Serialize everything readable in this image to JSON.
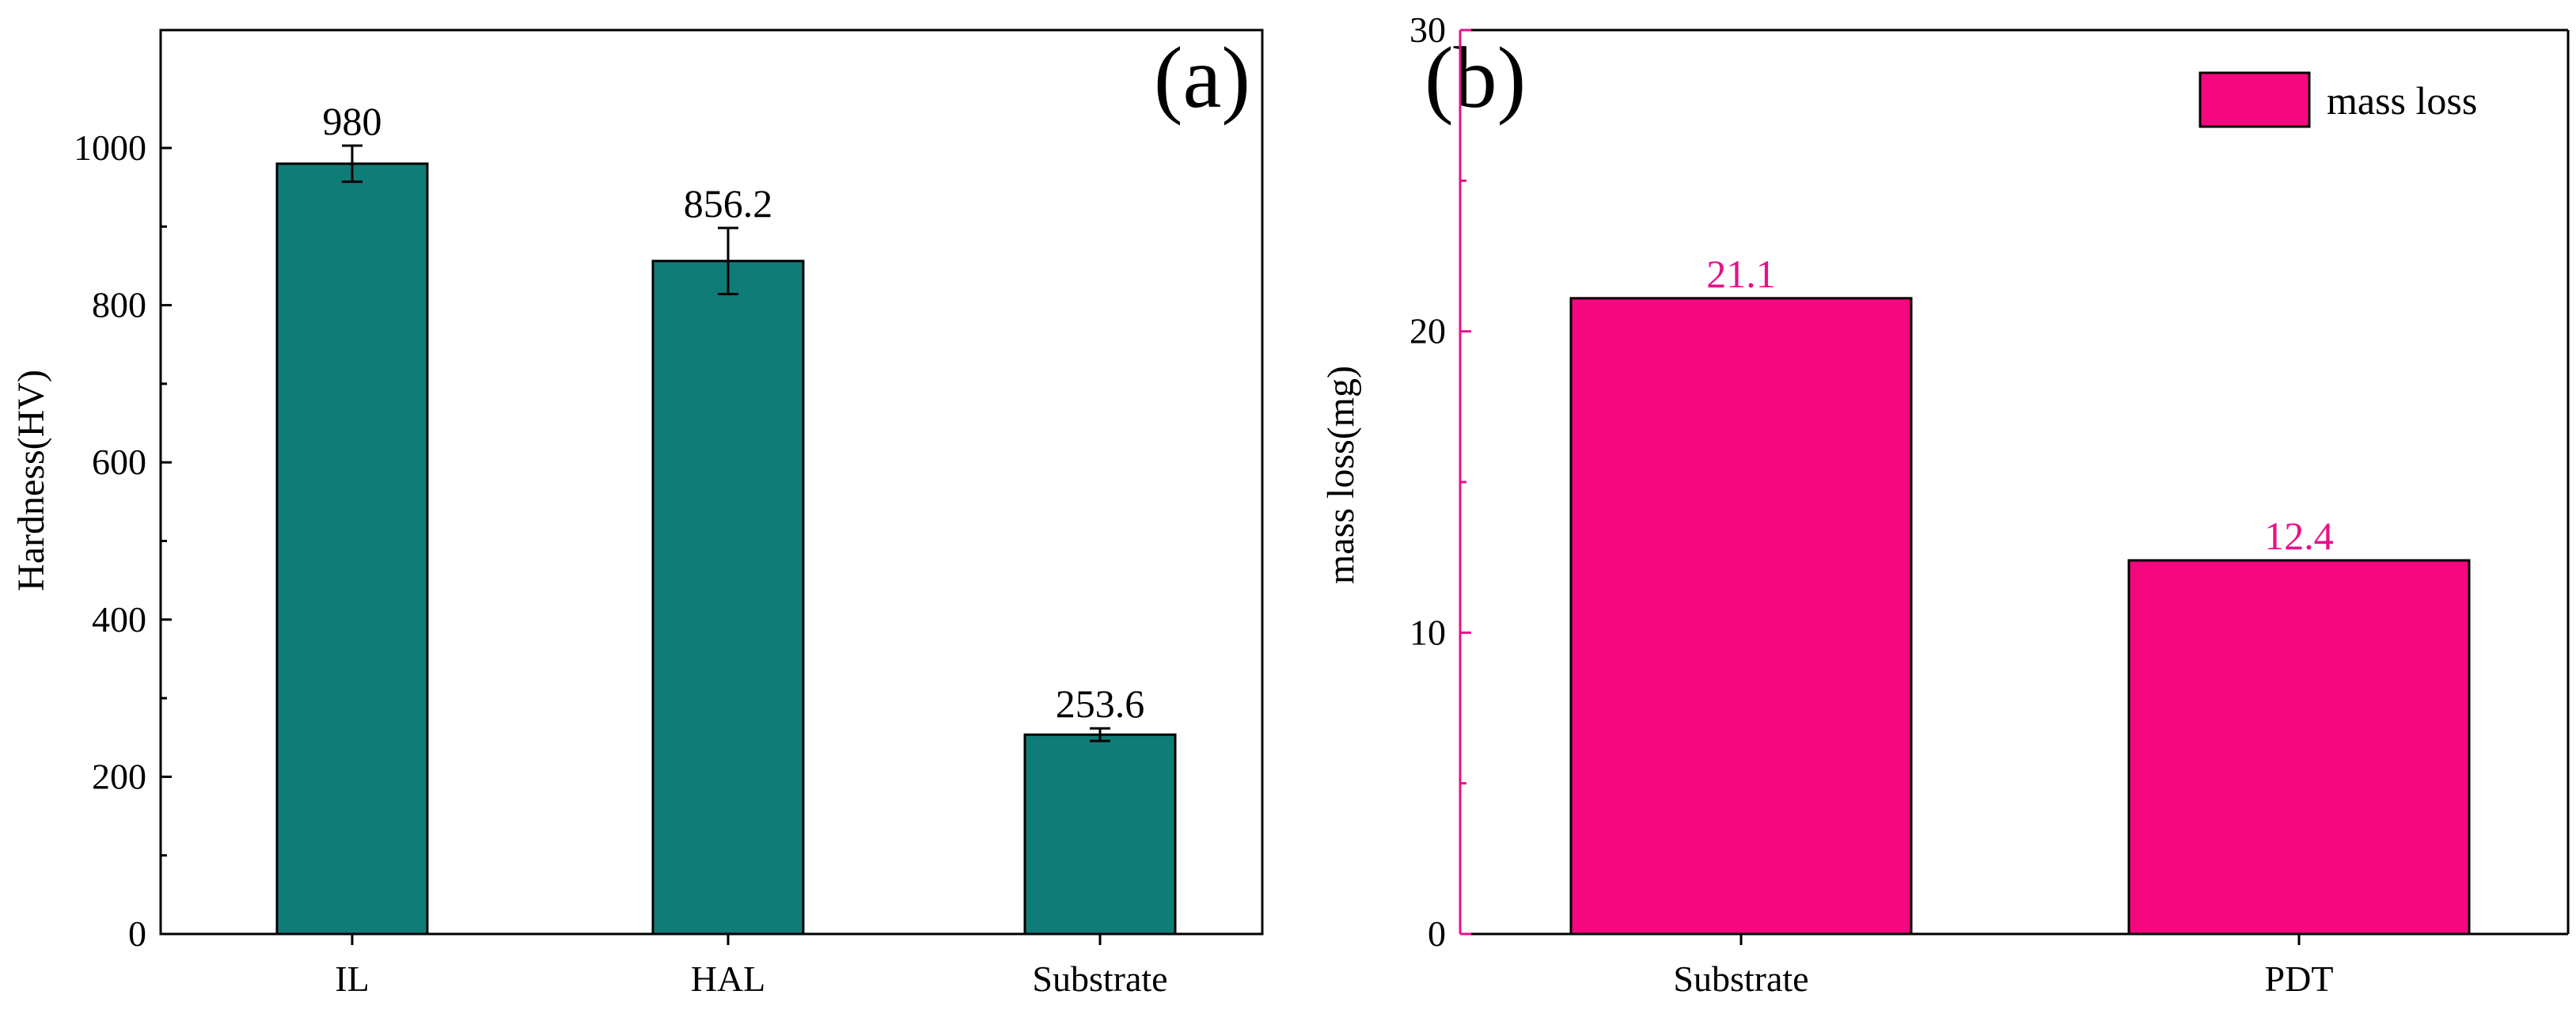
{
  "chart_data": [
    {
      "panel": "(a)",
      "type": "bar",
      "categories": [
        "IL",
        "HAL",
        "Substrate"
      ],
      "values": [
        980,
        856.2,
        253.6
      ],
      "value_labels": [
        "980",
        "856.2",
        "253.6"
      ],
      "error": [
        23,
        42,
        8
      ],
      "ylabel": "Hardness(HV)",
      "xlabel": "",
      "ylim": [
        0,
        1150
      ],
      "yticks": [
        0,
        200,
        400,
        600,
        800,
        1000
      ],
      "bar_color": "#0f7c78",
      "label_color": "#000000",
      "axis_color": "#000000",
      "legend": null
    },
    {
      "panel": "(b)",
      "type": "bar",
      "categories": [
        "Substrate",
        "PDT"
      ],
      "values": [
        21.1,
        12.4
      ],
      "value_labels": [
        "21.1",
        "12.4"
      ],
      "ylabel": "mass loss(mg)",
      "xlabel": "",
      "ylim": [
        0,
        30
      ],
      "yticks": [
        0,
        10,
        20,
        30
      ],
      "bar_color": "#f5077f",
      "label_color": "#e8108a",
      "axis_color": "#e8108a",
      "legend": {
        "label": "mass loss",
        "position": "top-right"
      }
    }
  ]
}
